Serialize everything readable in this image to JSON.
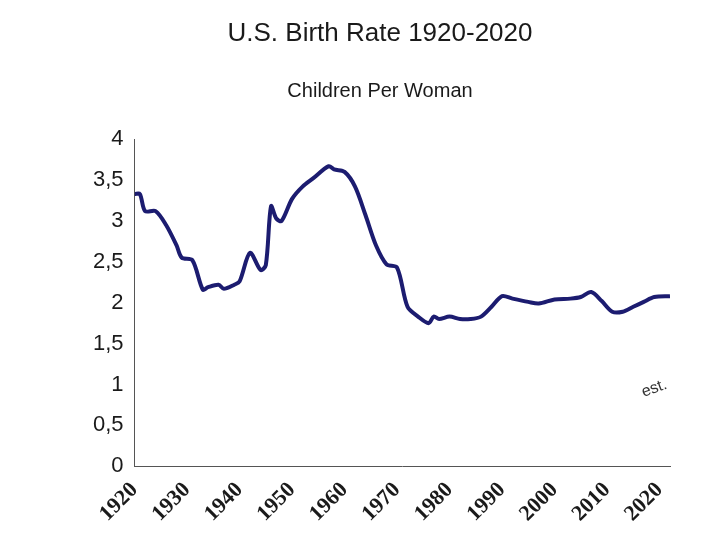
{
  "chart_data": {
    "type": "line",
    "title": "U.S. Birth Rate 1920-2020",
    "subtitle": "Children Per Woman",
    "x": [
      1920,
      1921,
      1922,
      1924,
      1926,
      1928,
      1929,
      1931,
      1933,
      1934,
      1936,
      1937,
      1939,
      1940,
      1942,
      1944,
      1945,
      1946,
      1947,
      1948,
      1950,
      1952,
      1954,
      1957,
      1958,
      1960,
      1962,
      1964,
      1966,
      1968,
      1970,
      1972,
      1974,
      1976,
      1977,
      1978,
      1980,
      1982,
      1984,
      1986,
      1988,
      1990,
      1992,
      1995,
      1997,
      2000,
      2003,
      2005,
      2007,
      2009,
      2011,
      2013,
      2015,
      2017,
      2019,
      2022
    ],
    "values": [
      3.33,
      3.33,
      3.12,
      3.12,
      2.95,
      2.7,
      2.55,
      2.52,
      2.16,
      2.19,
      2.22,
      2.17,
      2.22,
      2.26,
      2.61,
      2.4,
      2.46,
      3.18,
      3.03,
      3.0,
      3.27,
      3.42,
      3.52,
      3.67,
      3.63,
      3.6,
      3.42,
      3.07,
      2.7,
      2.47,
      2.43,
      1.95,
      1.83,
      1.75,
      1.83,
      1.8,
      1.83,
      1.8,
      1.8,
      1.83,
      1.95,
      2.08,
      2.05,
      2.01,
      1.99,
      2.04,
      2.05,
      2.07,
      2.13,
      2.02,
      1.89,
      1.89,
      1.95,
      2.01,
      2.07,
      2.08
    ],
    "color": "#1c1c70",
    "xlim": [
      1920,
      2022
    ],
    "xticks": [
      1920,
      1930,
      1940,
      1950,
      1960,
      1970,
      1980,
      1990,
      2000,
      2010,
      2020
    ],
    "ylim": [
      0,
      4
    ],
    "yticks": [
      0,
      {
        "value": 0.5,
        "label": "0,5"
      },
      1,
      {
        "value": 1.5,
        "label": "1,5"
      },
      2,
      {
        "value": 2.5,
        "label": "2,5"
      },
      3,
      {
        "value": 3.5,
        "label": "3,5"
      },
      4
    ],
    "grid": false,
    "annotations": [
      {
        "text": "est.",
        "x": 2019,
        "y": 0.95
      }
    ]
  }
}
